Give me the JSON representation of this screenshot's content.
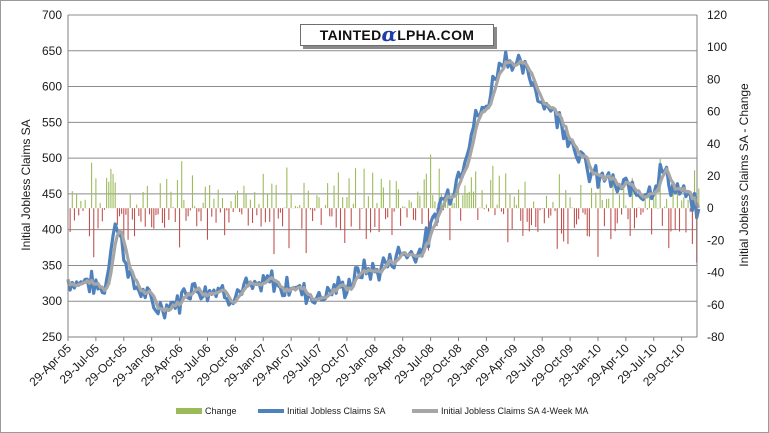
{
  "chart_data": {
    "type": "line",
    "logo": {
      "left": "TAINTED",
      "mark": "α",
      "right": "LPHA.COM"
    },
    "ylabel_left": "Initial Jobless Claims SA",
    "ylabel_right": "Initial Jobless Claims SA - Change",
    "ylim_left": [
      250,
      700
    ],
    "ylim_right": [
      -80,
      120
    ],
    "yticks_left": [
      "250",
      "300",
      "350",
      "400",
      "450",
      "500",
      "550",
      "600",
      "650",
      "700"
    ],
    "yticks_right": [
      "-80",
      "-60",
      "-40",
      "-20",
      "0",
      "20",
      "40",
      "60",
      "80",
      "100",
      "120"
    ],
    "xtick_labels": [
      "29-Apr-05",
      "29-Jul-05",
      "29-Oct-05",
      "29-Jan-06",
      "29-Apr-06",
      "29-Jul-06",
      "29-Oct-06",
      "29-Jan-07",
      "29-Apr-07",
      "29-Jul-07",
      "29-Oct-07",
      "29-Jan-08",
      "29-Apr-08",
      "29-Jul-08",
      "29-Oct-08",
      "29-Jan-09",
      "29-Apr-09",
      "29-Jul-09",
      "29-Oct-09",
      "29-Jan-10",
      "29-Apr-10",
      "29-Jul-10",
      "29-Oct-10"
    ],
    "grid": "horizontal",
    "legend_position": "bottom",
    "colors": {
      "change": "#9bbb59",
      "change_negative": "#c0504d",
      "claims": "#4f81bd",
      "ma": "#a6a6a6"
    },
    "series": [
      {
        "name": "Change",
        "type": "bar",
        "axis": "right"
      },
      {
        "name": "Initial Jobless Claims SA",
        "type": "line",
        "axis": "left"
      },
      {
        "name": "Initial Jobless Claims SA 4-Week MA",
        "type": "line",
        "axis": "left"
      }
    ],
    "claims_by_month": [
      [
        "2005-04",
        330
      ],
      [
        "2005-05",
        325
      ],
      [
        "2005-06",
        330
      ],
      [
        "2005-07",
        320
      ],
      [
        "2005-08",
        315
      ],
      [
        "2005-09",
        415
      ],
      [
        "2005-10",
        370
      ],
      [
        "2005-11",
        320
      ],
      [
        "2005-12",
        315
      ],
      [
        "2006-01",
        295
      ],
      [
        "2006-02",
        290
      ],
      [
        "2006-03",
        295
      ],
      [
        "2006-04",
        300
      ],
      [
        "2006-05",
        320
      ],
      [
        "2006-06",
        318
      ],
      [
        "2006-07",
        315
      ],
      [
        "2006-08",
        318
      ],
      [
        "2006-09",
        312
      ],
      [
        "2006-10",
        308
      ],
      [
        "2006-11",
        320
      ],
      [
        "2006-12",
        315
      ],
      [
        "2007-01",
        322
      ],
      [
        "2007-02",
        330
      ],
      [
        "2007-03",
        315
      ],
      [
        "2007-04",
        325
      ],
      [
        "2007-05",
        315
      ],
      [
        "2007-06",
        310
      ],
      [
        "2007-07",
        305
      ],
      [
        "2007-08",
        315
      ],
      [
        "2007-09",
        318
      ],
      [
        "2007-10",
        320
      ],
      [
        "2007-11",
        335
      ],
      [
        "2007-12",
        345
      ],
      [
        "2008-01",
        340
      ],
      [
        "2008-02",
        350
      ],
      [
        "2008-03",
        360
      ],
      [
        "2008-04",
        370
      ],
      [
        "2008-05",
        365
      ],
      [
        "2008-06",
        375
      ],
      [
        "2008-07",
        395
      ],
      [
        "2008-08",
        440
      ],
      [
        "2008-09",
        450
      ],
      [
        "2008-10",
        475
      ],
      [
        "2008-11",
        520
      ],
      [
        "2008-12",
        560
      ],
      [
        "2009-01",
        570
      ],
      [
        "2009-02",
        620
      ],
      [
        "2009-03",
        645
      ],
      [
        "2009-04",
        630
      ],
      [
        "2009-05",
        625
      ],
      [
        "2009-06",
        605
      ],
      [
        "2009-07",
        580
      ],
      [
        "2009-08",
        570
      ],
      [
        "2009-09",
        550
      ],
      [
        "2009-10",
        530
      ],
      [
        "2009-11",
        505
      ],
      [
        "2009-12",
        480
      ],
      [
        "2010-01",
        470
      ],
      [
        "2010-02",
        475
      ],
      [
        "2010-03",
        455
      ],
      [
        "2010-04",
        460
      ],
      [
        "2010-05",
        455
      ],
      [
        "2010-06",
        455
      ],
      [
        "2010-07",
        460
      ],
      [
        "2010-08",
        485
      ],
      [
        "2010-09",
        460
      ],
      [
        "2010-10",
        450
      ],
      [
        "2010-11",
        440
      ],
      [
        "2010-12",
        420
      ]
    ]
  }
}
